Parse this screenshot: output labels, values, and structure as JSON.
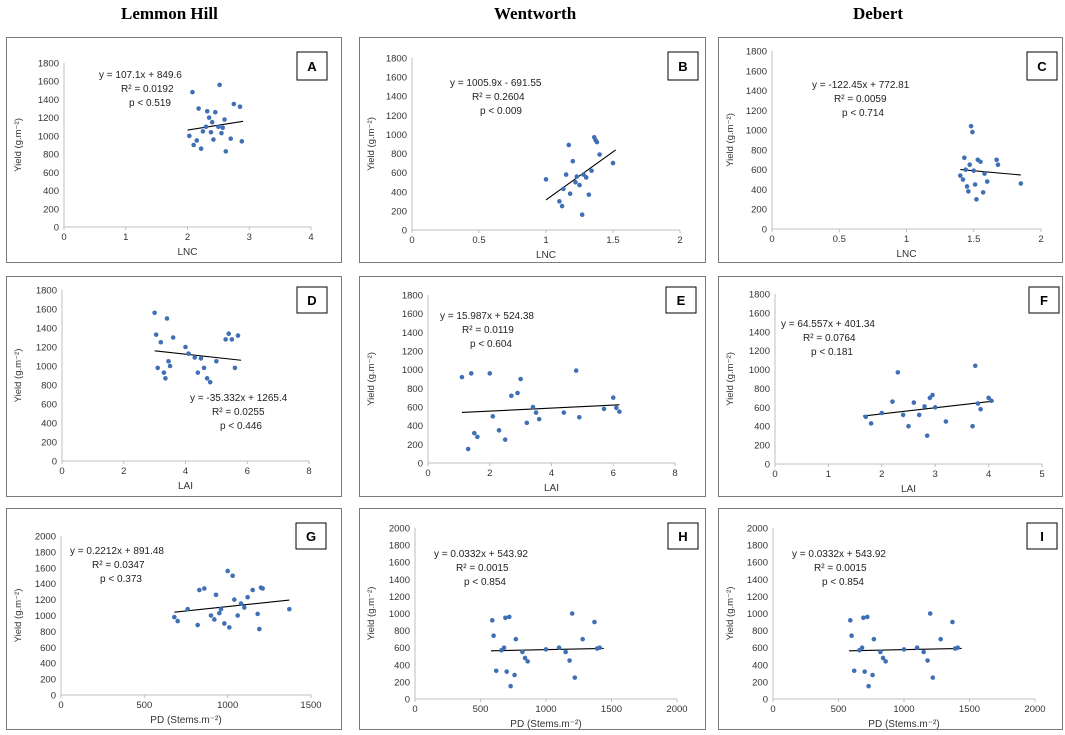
{
  "columns": [
    "Lemmon Hill",
    "Wentworth",
    "Debert"
  ],
  "colors": {
    "point": "#3f6fb5",
    "trend": "#000000",
    "axis": "#bfbfbf"
  },
  "chart_data": [
    {
      "id": "A",
      "type": "scatter",
      "xlabel": "LNC",
      "ylabel": "Yield (g.m⁻²)",
      "xlim": [
        0,
        4
      ],
      "xticks": [
        0,
        1,
        2,
        3,
        4
      ],
      "xtick_labels": [
        "0",
        "1",
        "2",
        "3",
        "4"
      ],
      "ylim": [
        0,
        1800
      ],
      "yticks": [
        0,
        200,
        400,
        600,
        800,
        1000,
        1200,
        1400,
        1600,
        1800
      ],
      "ytick_labels": [
        "0",
        "200",
        "400",
        "600",
        "800",
        "1000",
        "1200",
        "1400",
        "1600",
        "1800"
      ],
      "equation": [
        "y = 107.1x + 849.6",
        "R² = 0.0192",
        "p < 0.519"
      ],
      "trend": {
        "slope": 107.1,
        "intercept": 849.6,
        "x_range": [
          2.0,
          2.9
        ]
      },
      "points": [
        [
          2.03,
          1000
        ],
        [
          2.08,
          1480
        ],
        [
          2.1,
          900
        ],
        [
          2.15,
          950
        ],
        [
          2.18,
          1300
        ],
        [
          2.22,
          860
        ],
        [
          2.25,
          1050
        ],
        [
          2.3,
          1100
        ],
        [
          2.32,
          1270
        ],
        [
          2.35,
          1200
        ],
        [
          2.38,
          1040
        ],
        [
          2.4,
          1150
        ],
        [
          2.42,
          960
        ],
        [
          2.45,
          1260
        ],
        [
          2.5,
          1100
        ],
        [
          2.52,
          1560
        ],
        [
          2.55,
          1030
        ],
        [
          2.57,
          1090
        ],
        [
          2.6,
          1180
        ],
        [
          2.62,
          830
        ],
        [
          2.7,
          970
        ],
        [
          2.75,
          1350
        ],
        [
          2.85,
          1320
        ],
        [
          2.88,
          940
        ]
      ]
    },
    {
      "id": "B",
      "type": "scatter",
      "xlabel": "LNC",
      "ylabel": "Yield (g.m⁻²)",
      "xlim": [
        0,
        2
      ],
      "xticks": [
        0,
        0.5,
        1,
        1.5,
        2
      ],
      "xtick_labels": [
        "0",
        "0.5",
        "1",
        "1.5",
        "2"
      ],
      "ylim": [
        0,
        1800
      ],
      "yticks": [
        0,
        200,
        400,
        600,
        800,
        1000,
        1200,
        1400,
        1600,
        1800
      ],
      "ytick_labels": [
        "0",
        "200",
        "400",
        "600",
        "800",
        "1000",
        "1200",
        "1400",
        "1600",
        "1800"
      ],
      "equation": [
        "y = 1005.9x - 691.55",
        "R² = 0.2604",
        "p < 0.009"
      ],
      "trend": {
        "slope": 1005.9,
        "intercept": -691.55,
        "x_range": [
          1.0,
          1.52
        ]
      },
      "points": [
        [
          1.0,
          530
        ],
        [
          1.1,
          300
        ],
        [
          1.12,
          250
        ],
        [
          1.13,
          430
        ],
        [
          1.15,
          580
        ],
        [
          1.17,
          890
        ],
        [
          1.18,
          380
        ],
        [
          1.2,
          720
        ],
        [
          1.22,
          500
        ],
        [
          1.23,
          560
        ],
        [
          1.25,
          470
        ],
        [
          1.27,
          160
        ],
        [
          1.28,
          580
        ],
        [
          1.3,
          550
        ],
        [
          1.32,
          370
        ],
        [
          1.34,
          620
        ],
        [
          1.36,
          970
        ],
        [
          1.37,
          940
        ],
        [
          1.38,
          920
        ],
        [
          1.4,
          790
        ],
        [
          1.5,
          700
        ]
      ]
    },
    {
      "id": "C",
      "type": "scatter",
      "xlabel": "LNC",
      "ylabel": "Yield (g.m⁻²)",
      "xlim": [
        0,
        2
      ],
      "xticks": [
        0,
        0.5,
        1,
        1.5,
        2
      ],
      "xtick_labels": [
        "0",
        "0.5",
        "1",
        "1.5",
        "2"
      ],
      "ylim": [
        0,
        1800
      ],
      "yticks": [
        0,
        200,
        400,
        600,
        800,
        1000,
        1200,
        1400,
        1600,
        1800
      ],
      "ytick_labels": [
        "0",
        "200",
        "400",
        "600",
        "800",
        "1000",
        "1200",
        "1400",
        "1600",
        "1800"
      ],
      "equation": [
        "y = -122.45x + 772.81",
        "R² = 0.0059",
        "p < 0.714"
      ],
      "trend": {
        "slope": -122.45,
        "intercept": 772.81,
        "x_range": [
          1.4,
          1.85
        ]
      },
      "points": [
        [
          1.4,
          540
        ],
        [
          1.42,
          500
        ],
        [
          1.43,
          720
        ],
        [
          1.44,
          600
        ],
        [
          1.45,
          430
        ],
        [
          1.46,
          380
        ],
        [
          1.47,
          650
        ],
        [
          1.48,
          1040
        ],
        [
          1.49,
          980
        ],
        [
          1.5,
          590
        ],
        [
          1.51,
          450
        ],
        [
          1.52,
          300
        ],
        [
          1.53,
          700
        ],
        [
          1.55,
          680
        ],
        [
          1.57,
          370
        ],
        [
          1.58,
          560
        ],
        [
          1.6,
          480
        ],
        [
          1.67,
          700
        ],
        [
          1.68,
          650
        ],
        [
          1.85,
          460
        ]
      ]
    },
    {
      "id": "D",
      "type": "scatter",
      "xlabel": "LAI",
      "ylabel": "Yield (g.m⁻²)",
      "xlim": [
        0,
        8
      ],
      "xticks": [
        0,
        2,
        4,
        6,
        8
      ],
      "xtick_labels": [
        "0",
        "2",
        "4",
        "6",
        "8"
      ],
      "ylim": [
        0,
        1800
      ],
      "yticks": [
        0,
        200,
        400,
        600,
        800,
        1000,
        1200,
        1400,
        1600,
        1800
      ],
      "ytick_labels": [
        "0",
        "200",
        "400",
        "600",
        "800",
        "1000",
        "1200",
        "1400",
        "1600",
        "1800"
      ],
      "equation": [
        "y = -35.332x + 1265.4",
        "R² = 0.0255",
        "p < 0.446"
      ],
      "trend": {
        "slope": -35.332,
        "intercept": 1265.4,
        "x_range": [
          3.0,
          5.8
        ]
      },
      "points": [
        [
          3.0,
          1560
        ],
        [
          3.05,
          1330
        ],
        [
          3.1,
          980
        ],
        [
          3.2,
          1250
        ],
        [
          3.3,
          930
        ],
        [
          3.35,
          870
        ],
        [
          3.4,
          1500
        ],
        [
          3.45,
          1050
        ],
        [
          3.5,
          1000
        ],
        [
          3.6,
          1300
        ],
        [
          4.0,
          1200
        ],
        [
          4.1,
          1130
        ],
        [
          4.3,
          1090
        ],
        [
          4.4,
          930
        ],
        [
          4.5,
          1080
        ],
        [
          4.6,
          980
        ],
        [
          4.7,
          870
        ],
        [
          4.8,
          830
        ],
        [
          5.0,
          1050
        ],
        [
          5.3,
          1280
        ],
        [
          5.4,
          1340
        ],
        [
          5.5,
          1280
        ],
        [
          5.6,
          980
        ],
        [
          5.7,
          1320
        ]
      ]
    },
    {
      "id": "E",
      "type": "scatter",
      "xlabel": "LAI",
      "ylabel": "Yield (g.m⁻²)",
      "xlim": [
        0,
        8
      ],
      "xticks": [
        0,
        2,
        4,
        6,
        8
      ],
      "xtick_labels": [
        "0",
        "2",
        "4",
        "6",
        "8"
      ],
      "ylim": [
        0,
        1800
      ],
      "yticks": [
        0,
        200,
        400,
        600,
        800,
        1000,
        1200,
        1400,
        1600,
        1800
      ],
      "ytick_labels": [
        "0",
        "200",
        "400",
        "600",
        "800",
        "1000",
        "1200",
        "1400",
        "1600",
        "1800"
      ],
      "equation": [
        "y = 15.987x + 524.38",
        "R² = 0.0119",
        "p < 0.604"
      ],
      "trend": {
        "slope": 15.987,
        "intercept": 524.38,
        "x_range": [
          1.1,
          6.2
        ]
      },
      "points": [
        [
          1.1,
          920
        ],
        [
          1.3,
          150
        ],
        [
          1.4,
          960
        ],
        [
          1.5,
          320
        ],
        [
          1.6,
          280
        ],
        [
          2.0,
          960
        ],
        [
          2.1,
          500
        ],
        [
          2.3,
          350
        ],
        [
          2.5,
          250
        ],
        [
          2.7,
          720
        ],
        [
          2.9,
          750
        ],
        [
          3.0,
          900
        ],
        [
          3.2,
          430
        ],
        [
          3.4,
          600
        ],
        [
          3.5,
          540
        ],
        [
          3.6,
          470
        ],
        [
          4.4,
          540
        ],
        [
          4.8,
          990
        ],
        [
          4.9,
          490
        ],
        [
          5.7,
          580
        ],
        [
          6.0,
          700
        ],
        [
          6.1,
          590
        ],
        [
          6.2,
          550
        ]
      ]
    },
    {
      "id": "F",
      "type": "scatter",
      "xlabel": "LAI",
      "ylabel": "Yield (g.m⁻²)",
      "xlim": [
        0,
        5
      ],
      "xticks": [
        0,
        1,
        2,
        3,
        4,
        5
      ],
      "xtick_labels": [
        "0",
        "1",
        "2",
        "3",
        "4",
        "5"
      ],
      "ylim": [
        0,
        1800
      ],
      "yticks": [
        0,
        200,
        400,
        600,
        800,
        1000,
        1200,
        1400,
        1600,
        1800
      ],
      "ytick_labels": [
        "0",
        "200",
        "400",
        "600",
        "800",
        "1000",
        "1200",
        "1400",
        "1600",
        "1800"
      ],
      "equation": [
        "y = 64.557x + 401.34",
        "R² = 0.0764",
        "p < 0.181"
      ],
      "trend": {
        "slope": 64.557,
        "intercept": 401.34,
        "x_range": [
          1.65,
          4.1
        ]
      },
      "points": [
        [
          1.7,
          500
        ],
        [
          1.8,
          430
        ],
        [
          2.0,
          540
        ],
        [
          2.2,
          660
        ],
        [
          2.3,
          970
        ],
        [
          2.4,
          520
        ],
        [
          2.5,
          400
        ],
        [
          2.6,
          650
        ],
        [
          2.7,
          520
        ],
        [
          2.8,
          610
        ],
        [
          2.85,
          300
        ],
        [
          2.9,
          700
        ],
        [
          2.95,
          730
        ],
        [
          3.0,
          600
        ],
        [
          3.2,
          450
        ],
        [
          3.7,
          400
        ],
        [
          3.75,
          1040
        ],
        [
          3.8,
          640
        ],
        [
          3.85,
          580
        ],
        [
          4.0,
          700
        ],
        [
          4.05,
          670
        ]
      ]
    },
    {
      "id": "G",
      "type": "scatter",
      "xlabel": "PD (Stems.m⁻²)",
      "ylabel": "Yield (g.m⁻²)",
      "xlim": [
        0,
        1500
      ],
      "xticks": [
        0,
        500,
        1000,
        1500
      ],
      "xtick_labels": [
        "0",
        "500",
        "1000",
        "1500"
      ],
      "ylim": [
        0,
        2000
      ],
      "yticks": [
        0,
        200,
        400,
        600,
        800,
        1000,
        1200,
        1400,
        1600,
        1800,
        2000
      ],
      "ytick_labels": [
        "0",
        "200",
        "400",
        "600",
        "800",
        "1000",
        "1200",
        "1400",
        "1600",
        "1800",
        "2000"
      ],
      "equation": [
        "y = 0.2212x + 891.48",
        "R² = 0.0347",
        "p < 0.373"
      ],
      "trend": {
        "slope": 0.2212,
        "intercept": 891.48,
        "x_range": [
          680,
          1370
        ]
      },
      "points": [
        [
          680,
          980
        ],
        [
          700,
          930
        ],
        [
          760,
          1080
        ],
        [
          820,
          880
        ],
        [
          830,
          1320
        ],
        [
          860,
          1340
        ],
        [
          900,
          1000
        ],
        [
          920,
          950
        ],
        [
          930,
          1260
        ],
        [
          950,
          1030
        ],
        [
          960,
          1080
        ],
        [
          980,
          900
        ],
        [
          1000,
          1560
        ],
        [
          1010,
          850
        ],
        [
          1030,
          1500
        ],
        [
          1040,
          1200
        ],
        [
          1060,
          1000
        ],
        [
          1080,
          1150
        ],
        [
          1100,
          1100
        ],
        [
          1120,
          1230
        ],
        [
          1150,
          1320
        ],
        [
          1180,
          1020
        ],
        [
          1190,
          830
        ],
        [
          1200,
          1350
        ],
        [
          1210,
          1340
        ],
        [
          1370,
          1080
        ]
      ]
    },
    {
      "id": "H",
      "type": "scatter",
      "xlabel": "PD (Stems.m⁻²)",
      "ylabel": "Yield (g.m⁻²)",
      "xlim": [
        0,
        2000
      ],
      "xticks": [
        0,
        500,
        1000,
        1500,
        2000
      ],
      "xtick_labels": [
        "0",
        "500",
        "1000",
        "1500",
        "2000"
      ],
      "ylim": [
        0,
        2000
      ],
      "yticks": [
        0,
        200,
        400,
        600,
        800,
        1000,
        1200,
        1400,
        1600,
        1800,
        2000
      ],
      "ytick_labels": [
        "0",
        "200",
        "400",
        "600",
        "800",
        "1000",
        "1200",
        "1400",
        "1600",
        "1800",
        "2000"
      ],
      "equation": [
        "y = 0.0332x + 543.92",
        "R² = 0.0015",
        "p < 0.854"
      ],
      "trend": {
        "slope": 0.0332,
        "intercept": 543.92,
        "x_range": [
          580,
          1440
        ]
      },
      "points": [
        [
          590,
          920
        ],
        [
          600,
          740
        ],
        [
          620,
          330
        ],
        [
          660,
          570
        ],
        [
          680,
          600
        ],
        [
          690,
          950
        ],
        [
          700,
          320
        ],
        [
          720,
          960
        ],
        [
          730,
          150
        ],
        [
          760,
          280
        ],
        [
          770,
          700
        ],
        [
          820,
          550
        ],
        [
          840,
          480
        ],
        [
          860,
          440
        ],
        [
          1000,
          580
        ],
        [
          1100,
          600
        ],
        [
          1150,
          550
        ],
        [
          1180,
          450
        ],
        [
          1200,
          1000
        ],
        [
          1220,
          250
        ],
        [
          1280,
          700
        ],
        [
          1370,
          900
        ],
        [
          1390,
          590
        ],
        [
          1410,
          600
        ]
      ]
    },
    {
      "id": "I",
      "type": "scatter",
      "xlabel": "PD (Stems.m⁻²)",
      "ylabel": "Yield (g.m⁻²)",
      "xlim": [
        0,
        2000
      ],
      "xticks": [
        0,
        500,
        1000,
        1500,
        2000
      ],
      "xtick_labels": [
        "0",
        "500",
        "1000",
        "1500",
        "2000"
      ],
      "ylim": [
        0,
        2000
      ],
      "yticks": [
        0,
        200,
        400,
        600,
        800,
        1000,
        1200,
        1400,
        1600,
        1800,
        2000
      ],
      "ytick_labels": [
        "0",
        "200",
        "400",
        "600",
        "800",
        "1000",
        "1200",
        "1400",
        "1600",
        "1800",
        "2000"
      ],
      "equation": [
        "y = 0.0332x + 543.92",
        "R² = 0.0015",
        "p < 0.854"
      ],
      "trend": {
        "slope": 0.0332,
        "intercept": 543.92,
        "x_range": [
          580,
          1440
        ]
      },
      "points": [
        [
          590,
          920
        ],
        [
          600,
          740
        ],
        [
          620,
          330
        ],
        [
          660,
          570
        ],
        [
          680,
          600
        ],
        [
          690,
          950
        ],
        [
          700,
          320
        ],
        [
          720,
          960
        ],
        [
          730,
          150
        ],
        [
          760,
          280
        ],
        [
          770,
          700
        ],
        [
          820,
          550
        ],
        [
          840,
          480
        ],
        [
          860,
          440
        ],
        [
          1000,
          580
        ],
        [
          1100,
          600
        ],
        [
          1150,
          550
        ],
        [
          1180,
          450
        ],
        [
          1200,
          1000
        ],
        [
          1220,
          250
        ],
        [
          1280,
          700
        ],
        [
          1370,
          900
        ],
        [
          1390,
          590
        ],
        [
          1410,
          600
        ]
      ]
    }
  ]
}
